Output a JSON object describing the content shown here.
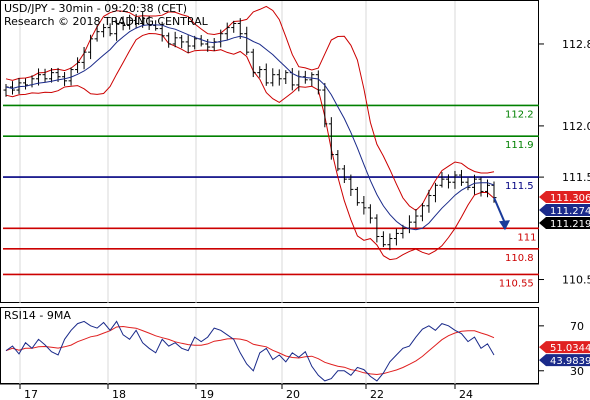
{
  "chart_data": {
    "type": "candlestick",
    "title": "USD/JPY - 30min - 09:20:38 (CET)",
    "subtitle": "Research © 2018 TRADING CENTRAL",
    "x_ticks": [
      "17",
      "18",
      "19",
      "20",
      "22",
      "24"
    ],
    "price_axis": {
      "range": [
        110.3,
        113.2
      ],
      "ticks": [
        "112.8",
        "112.0",
        "111.5",
        "110.5"
      ]
    },
    "levels": [
      {
        "label": "112.2",
        "value": 112.2,
        "color": "#008000"
      },
      {
        "label": "111.9",
        "value": 111.9,
        "color": "#008000"
      },
      {
        "label": "111.5",
        "value": 111.5,
        "color": "#000080"
      },
      {
        "label": "111",
        "value": 111.0,
        "color": "#cc0000"
      },
      {
        "label": "110.8",
        "value": 110.8,
        "color": "#cc0000"
      },
      {
        "label": "110.55",
        "value": 110.55,
        "color": "#cc0000"
      }
    ],
    "price_tags": [
      {
        "label": "111.306",
        "value": 111.306,
        "color": "#e02020"
      },
      {
        "label": "111.274",
        "value": 111.274,
        "color": "#1a2a8a"
      },
      {
        "label": "111.219",
        "value": 111.219,
        "color": "#000000"
      }
    ],
    "close": [
      112.38,
      112.35,
      112.42,
      112.4,
      112.46,
      112.5,
      112.46,
      112.52,
      112.48,
      112.44,
      112.55,
      112.62,
      112.72,
      112.85,
      112.92,
      112.96,
      112.9,
      113.0,
      112.98,
      113.03,
      113.0,
      113.05,
      112.98,
      112.95,
      112.88,
      112.8,
      112.86,
      112.82,
      112.78,
      112.85,
      112.8,
      112.77,
      112.82,
      112.9,
      112.96,
      113.0,
      112.9,
      112.72,
      112.52,
      112.55,
      112.42,
      112.5,
      112.46,
      112.52,
      112.4,
      112.48,
      112.45,
      112.5,
      112.35,
      112.02,
      111.72,
      111.58,
      111.48,
      111.38,
      111.25,
      111.2,
      111.1,
      110.92,
      110.84,
      110.9,
      110.95,
      111.0,
      111.06,
      111.12,
      111.22,
      111.32,
      111.42,
      111.48,
      111.45,
      111.52,
      111.45,
      111.4,
      111.48,
      111.36,
      111.42,
      111.3
    ],
    "rsi": {
      "label": "RSI14 - 9MA",
      "range": [
        20,
        85
      ],
      "ticks": [
        "70",
        "30"
      ],
      "tag_ma": "51.0344",
      "tag_rsi": "43.9839",
      "tag_ma_value": 51.0344,
      "tag_rsi_value": 43.9839,
      "ma_color": "#e02020",
      "rsi_color": "#1a2a8a",
      "values": [
        48,
        52,
        45,
        55,
        50,
        58,
        53,
        47,
        44,
        58,
        66,
        72,
        74,
        70,
        68,
        73,
        66,
        74,
        62,
        58,
        66,
        55,
        50,
        46,
        58,
        52,
        55,
        50,
        48,
        60,
        56,
        60,
        68,
        66,
        62,
        58,
        46,
        36,
        30,
        46,
        50,
        40,
        44,
        38,
        46,
        42,
        47,
        34,
        26,
        21,
        23,
        30,
        30,
        26,
        33,
        31,
        25,
        21,
        28,
        38,
        44,
        50,
        52,
        60,
        67,
        70,
        66,
        72,
        70,
        66,
        63,
        56,
        60,
        50,
        54,
        44
      ]
    },
    "colors": {
      "upper_band": "#cc0000",
      "lower_band": "#cc0000",
      "moving_average": "#1a2a8a",
      "forecast_arrow": "#1a3a9a"
    }
  }
}
